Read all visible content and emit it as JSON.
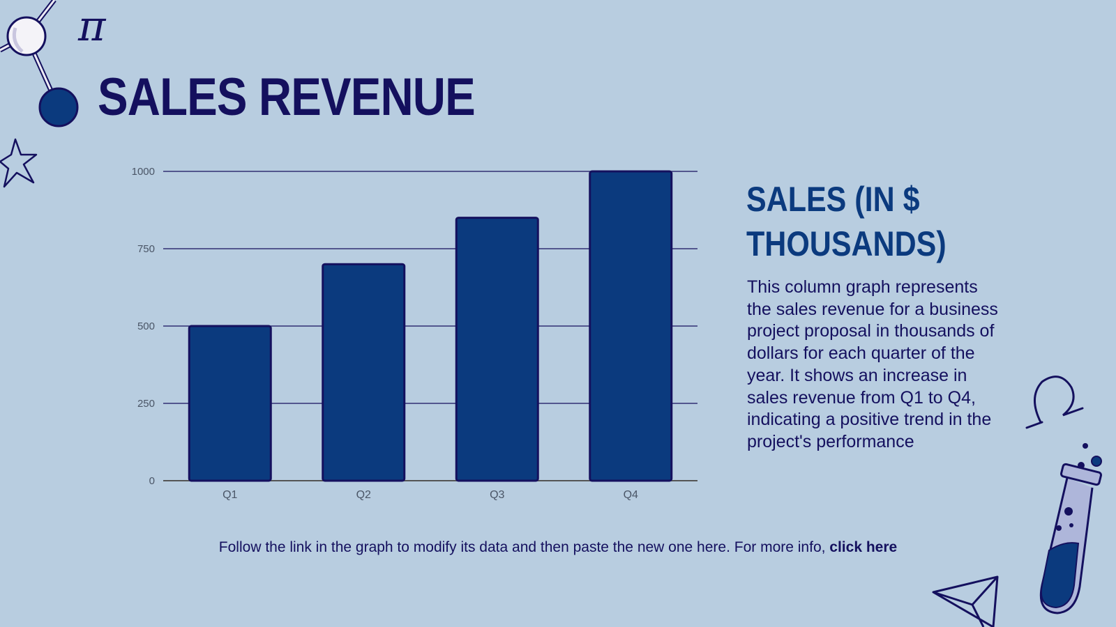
{
  "slide": {
    "title": "SALES REVENUE",
    "side_title": "SALES (IN $ THOUSANDS)",
    "description": "This column graph represents the sales revenue for a business project proposal in thousands of dollars for each quarter of the year. It shows an increase in sales revenue from Q1 to Q4, indicating a positive trend in the project's performance",
    "footer_text": "Follow the link in the graph to modify its data and then paste the new one here. For more info, ",
    "footer_link": "click here"
  },
  "colors": {
    "background": "#b8cde0",
    "bar_fill": "#0b3a7e",
    "bar_stroke": "#14105e",
    "title": "#14105e",
    "axis_text": "#4a5566",
    "grid": "#14105e"
  },
  "decorations": {
    "pi_symbol": "π",
    "omega_symbol": "Ω"
  },
  "chart_data": {
    "type": "bar",
    "categories": [
      "Q1",
      "Q2",
      "Q3",
      "Q4"
    ],
    "series": [
      {
        "name": "Sales",
        "values": [
          500,
          700,
          850,
          1000
        ]
      }
    ],
    "yticks": [
      0,
      250,
      500,
      750,
      1000
    ],
    "ylim": [
      0,
      1000
    ],
    "title": "",
    "xlabel": "",
    "ylabel": "",
    "grid": true,
    "legend": "none"
  }
}
